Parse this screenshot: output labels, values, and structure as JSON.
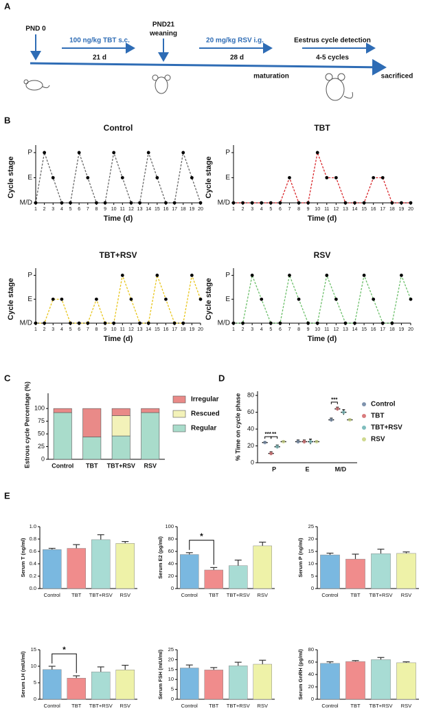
{
  "panels": [
    "A",
    "B",
    "C",
    "D",
    "E"
  ],
  "timeline": {
    "start": "PND 0",
    "treatment1": "100 ng/kg TBT s.c.",
    "duration1": "21 d",
    "weaning_day": "PND21",
    "weaning": "weaning",
    "treatment2": "20 mg/kg RSV i.g.",
    "duration2": "28 d",
    "maturation": "maturation",
    "detection": "Eestrus cycle detection",
    "cycles": "4-5 cycles",
    "end": "sacrificed"
  },
  "chart_data": [
    {
      "type": "line",
      "title": "Control",
      "xlabel": "Time (d)",
      "ylabel": "Cycle stage",
      "color": "#666666",
      "x": [
        1,
        2,
        3,
        4,
        5,
        6,
        7,
        8,
        9,
        10,
        11,
        12,
        13,
        14,
        15,
        16,
        17,
        18,
        19,
        20
      ],
      "values": [
        0,
        2,
        1,
        0,
        0,
        2,
        1,
        0,
        0,
        2,
        1,
        0,
        0,
        2,
        1,
        0,
        0,
        2,
        1,
        0
      ],
      "xlim": [
        1,
        20
      ],
      "xticks": [
        1,
        2,
        3,
        4,
        5,
        6,
        7,
        8,
        9,
        10,
        11,
        12,
        13,
        14,
        15,
        16,
        17,
        18,
        19,
        20
      ],
      "ylim": [
        0,
        2.3
      ],
      "yticks": [
        {
          "value": 0,
          "label": "M/D"
        },
        {
          "value": 1,
          "label": "E"
        },
        {
          "value": 2,
          "label": "P"
        }
      ]
    },
    {
      "type": "line",
      "title": "TBT",
      "xlabel": "Time (d)",
      "ylabel": "Cycle stage",
      "color": "#d9262a",
      "x": [
        1,
        2,
        3,
        4,
        5,
        6,
        7,
        8,
        9,
        10,
        11,
        12,
        13,
        14,
        15,
        16,
        17,
        18,
        19,
        20
      ],
      "values": [
        0,
        0,
        0,
        0,
        0,
        0,
        1,
        0,
        0,
        2,
        1,
        1,
        0,
        0,
        0,
        1,
        1,
        0,
        0,
        0
      ],
      "xlim": [
        1,
        20
      ],
      "xticks": [
        1,
        2,
        3,
        4,
        5,
        6,
        7,
        8,
        9,
        10,
        11,
        12,
        13,
        14,
        15,
        16,
        17,
        18,
        19,
        20
      ],
      "ylim": [
        0,
        2.3
      ],
      "yticks": [
        {
          "value": 0,
          "label": "M/D"
        },
        {
          "value": 1,
          "label": "E"
        },
        {
          "value": 2,
          "label": "P"
        }
      ]
    },
    {
      "type": "line",
      "title": "TBT+RSV",
      "xlabel": "Time (d)",
      "ylabel": "Cycle stage",
      "color": "#e8c51a",
      "x": [
        1,
        2,
        3,
        4,
        5,
        6,
        7,
        8,
        9,
        10,
        11,
        12,
        13,
        14,
        15,
        16,
        17,
        18,
        19,
        20
      ],
      "values": [
        0,
        0,
        1,
        1,
        0,
        0,
        0,
        1,
        0,
        0,
        2,
        1,
        0,
        0,
        2,
        1,
        0,
        0,
        2,
        1
      ],
      "xlim": [
        1,
        20
      ],
      "xticks": [
        1,
        2,
        3,
        4,
        5,
        6,
        7,
        8,
        9,
        10,
        11,
        12,
        13,
        14,
        15,
        16,
        17,
        18,
        19,
        20
      ],
      "ylim": [
        0,
        2.3
      ],
      "yticks": [
        {
          "value": 0,
          "label": "M/D"
        },
        {
          "value": 1,
          "label": "E"
        },
        {
          "value": 2,
          "label": "P"
        }
      ]
    },
    {
      "type": "line",
      "title": "RSV",
      "xlabel": "Time (d)",
      "ylabel": "Cycle stage",
      "color": "#6cbf6a",
      "x": [
        1,
        2,
        3,
        4,
        5,
        6,
        7,
        8,
        9,
        10,
        11,
        12,
        13,
        14,
        15,
        16,
        17,
        18,
        19,
        20
      ],
      "values": [
        0,
        0,
        2,
        1,
        0,
        0,
        2,
        1,
        0,
        0,
        2,
        1,
        0,
        0,
        2,
        1,
        0,
        0,
        2,
        1
      ],
      "xlim": [
        1,
        20
      ],
      "xticks": [
        1,
        2,
        3,
        4,
        5,
        6,
        7,
        8,
        9,
        10,
        11,
        12,
        13,
        14,
        15,
        16,
        17,
        18,
        19,
        20
      ],
      "ylim": [
        0,
        2.3
      ],
      "yticks": [
        {
          "value": 0,
          "label": "M/D"
        },
        {
          "value": 1,
          "label": "E"
        },
        {
          "value": 2,
          "label": "P"
        }
      ]
    },
    {
      "type": "stacked_bar",
      "ylabel": "Estrous cycle Percentage (%)",
      "categories": [
        "Control",
        "TBT",
        "TBT+RSV",
        "RSV"
      ],
      "series": [
        {
          "name": "Regular",
          "color": "#a9dccb",
          "values": [
            92,
            44,
            46,
            92
          ]
        },
        {
          "name": "Rescued",
          "color": "#f3f2b9",
          "values": [
            0,
            0,
            40,
            0
          ]
        },
        {
          "name": "Irregular",
          "color": "#e98a88",
          "values": [
            8,
            56,
            14,
            8
          ]
        }
      ],
      "ylim": [
        0,
        130
      ],
      "yticks": [
        0,
        25,
        50,
        75,
        100
      ]
    },
    {
      "type": "mean_sem",
      "ylabel": "% Time on cycle phase",
      "categories": [
        "P",
        "E",
        "M/D"
      ],
      "series": [
        {
          "name": "Control",
          "color": "#7f93ad",
          "values": [
            24,
            25,
            51
          ],
          "errors": [
            1,
            2,
            2
          ]
        },
        {
          "name": "TBT",
          "color": "#d97b7d",
          "values": [
            11,
            25,
            64
          ],
          "errors": [
            2,
            2,
            2
          ]
        },
        {
          "name": "TBT+RSV",
          "color": "#7fbdbd",
          "values": [
            19,
            25,
            60
          ],
          "errors": [
            2,
            3,
            3
          ]
        },
        {
          "name": "RSV",
          "color": "#cfd98f",
          "values": [
            25,
            25,
            51
          ],
          "errors": [
            1,
            1,
            1
          ]
        }
      ],
      "annotations": [
        "***",
        "**",
        "***"
      ],
      "ylim": [
        0,
        85
      ],
      "yticks": [
        0,
        20,
        40,
        60,
        80
      ]
    },
    {
      "type": "bar",
      "ylabel": "Serum T (ng/ml)",
      "categories": [
        "Control",
        "TBT",
        "TBT+RSV",
        "RSV"
      ],
      "colors": [
        "#7ab8e0",
        "#f08c8c",
        "#a8dcd4",
        "#eef2a8"
      ],
      "values": [
        0.63,
        0.65,
        0.79,
        0.73
      ],
      "errors": [
        0.02,
        0.06,
        0.08,
        0.03
      ],
      "ylim": [
        0,
        1
      ],
      "yticks": [
        {
          "value": 0,
          "label": "0.0"
        },
        {
          "value": 0.2,
          "label": "0.2"
        },
        {
          "value": 0.4,
          "label": "0.4"
        },
        {
          "value": 0.6,
          "label": "0.6"
        },
        {
          "value": 0.8,
          "label": "0.8"
        },
        {
          "value": 1,
          "label": "1.0"
        }
      ]
    },
    {
      "type": "bar",
      "ylabel": "Serum E2 (pg/ml)",
      "categories": [
        "Control",
        "TBT",
        "TBT+RSV",
        "RSV"
      ],
      "colors": [
        "#7ab8e0",
        "#f08c8c",
        "#a8dcd4",
        "#eef2a8"
      ],
      "values": [
        55,
        30,
        37,
        69
      ],
      "errors": [
        3,
        4,
        9,
        6
      ],
      "annotation": "*",
      "ylim": [
        0,
        100
      ],
      "yticks": [
        0,
        20,
        40,
        60,
        80,
        100
      ]
    },
    {
      "type": "bar",
      "ylabel": "Serum P (ng/ml)",
      "categories": [
        "Control",
        "TBT",
        "TBT+RSV",
        "RSV"
      ],
      "colors": [
        "#7ab8e0",
        "#f08c8c",
        "#a8dcd4",
        "#eef2a8"
      ],
      "values": [
        13.6,
        11.9,
        14.1,
        14.2
      ],
      "errors": [
        0.7,
        2,
        1.8,
        0.6
      ],
      "ylim": [
        0,
        25
      ],
      "yticks": [
        0,
        5,
        10,
        15,
        20,
        25
      ]
    },
    {
      "type": "bar",
      "ylabel": "Serum LH (mIU/ml)",
      "categories": [
        "Control",
        "TBT",
        "TBT+RSV",
        "RSV"
      ],
      "colors": [
        "#7ab8e0",
        "#f08c8c",
        "#a8dcd4",
        "#eef2a8"
      ],
      "values": [
        9,
        6.4,
        8.3,
        8.9
      ],
      "errors": [
        1,
        0.7,
        1.5,
        1.4
      ],
      "annotation": "*",
      "ylim": [
        0,
        15
      ],
      "yticks": [
        0,
        5,
        10,
        15
      ]
    },
    {
      "type": "bar",
      "ylabel": "Serum FSH (mIU/ml)",
      "categories": [
        "Control",
        "TBT",
        "TBT+RSV",
        "RSV"
      ],
      "colors": [
        "#7ab8e0",
        "#f08c8c",
        "#a8dcd4",
        "#eef2a8"
      ],
      "values": [
        15.8,
        14.8,
        16.9,
        17.7
      ],
      "errors": [
        1.5,
        1.2,
        1.8,
        2
      ],
      "ylim": [
        0,
        25
      ],
      "yticks": [
        0,
        5,
        10,
        15,
        20,
        25
      ]
    },
    {
      "type": "bar",
      "ylabel": "Serum GnRH (pg/ml)",
      "categories": [
        "Control",
        "TBT",
        "TBT+RSV",
        "RSV"
      ],
      "colors": [
        "#7ab8e0",
        "#f08c8c",
        "#a8dcd4",
        "#eef2a8"
      ],
      "values": [
        58,
        61,
        64,
        59
      ],
      "errors": [
        2.5,
        1.5,
        3.5,
        1.5
      ],
      "ylim": [
        0,
        80
      ],
      "yticks": [
        0,
        20,
        40,
        60,
        80
      ]
    }
  ]
}
